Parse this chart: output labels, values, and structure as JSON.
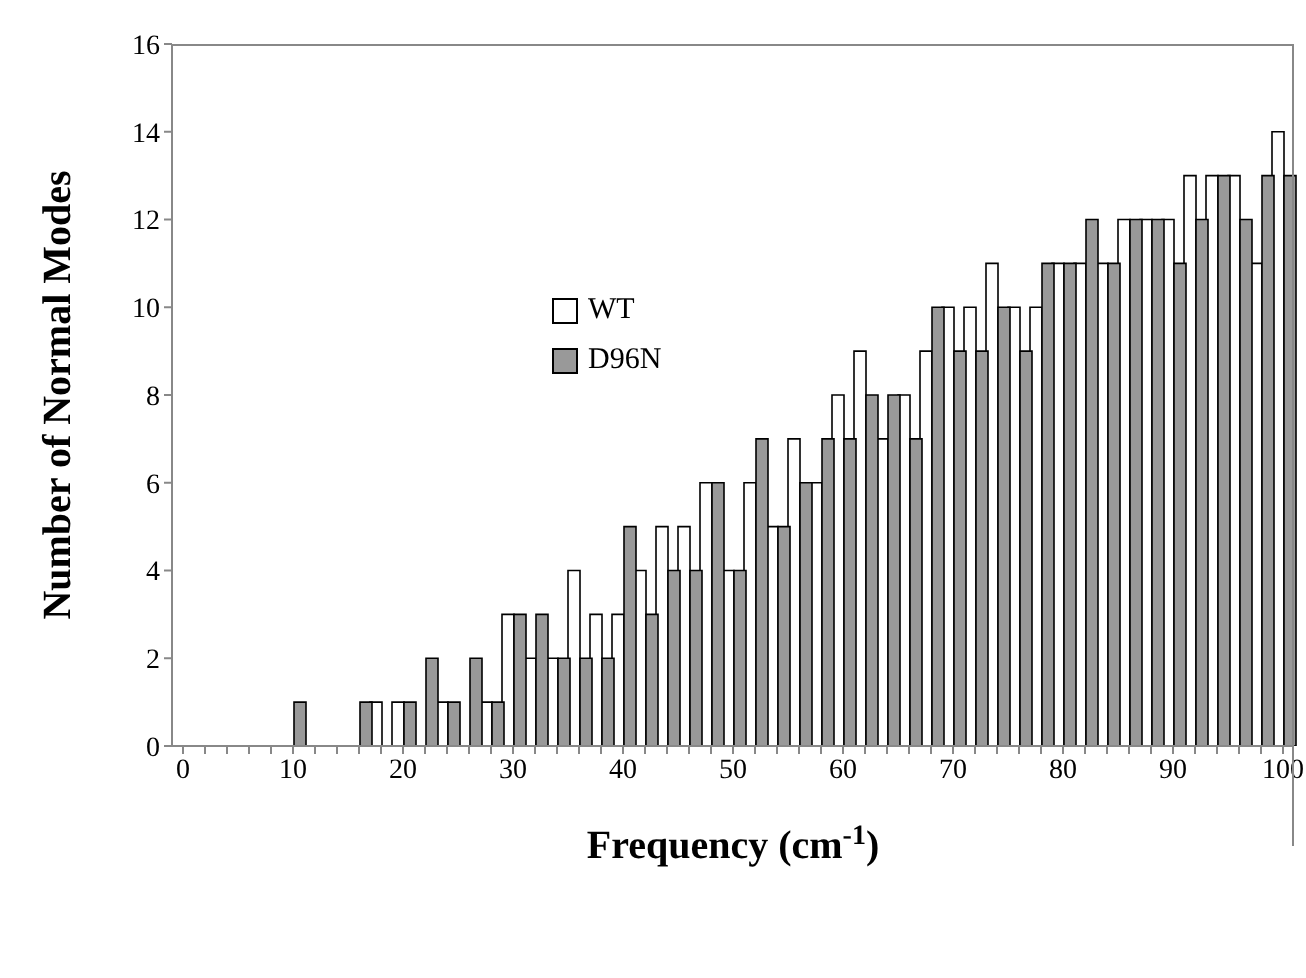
{
  "chart_data": {
    "type": "bar",
    "xlabel": "Frequency (cm$^{-1}$)",
    "ylabel": "Number of Normal Modes",
    "categories": [
      "0",
      null,
      null,
      null,
      null,
      "10",
      null,
      null,
      null,
      null,
      "20",
      null,
      null,
      null,
      null,
      "30",
      null,
      null,
      null,
      null,
      "40",
      null,
      null,
      null,
      null,
      "50",
      null,
      null,
      null,
      null,
      "60",
      null,
      null,
      null,
      null,
      "70",
      null,
      null,
      null,
      null,
      "80",
      null,
      null,
      null,
      null,
      "90",
      null,
      null,
      null,
      null,
      "100"
    ],
    "series": [
      {
        "name": "WT",
        "color": "#ffffff",
        "values": [
          0,
          0,
          0,
          0,
          0,
          0,
          0,
          0,
          0,
          1,
          1,
          0,
          1,
          0,
          1,
          3,
          2,
          2,
          4,
          3,
          3,
          4,
          5,
          5,
          6,
          4,
          6,
          5,
          7,
          6,
          8,
          9,
          7,
          8,
          9,
          10,
          10,
          11,
          10,
          10,
          11,
          11,
          11,
          12,
          12,
          12,
          13,
          13,
          13,
          11,
          14
        ]
      },
      {
        "name": "D96N",
        "color": "#999999",
        "values": [
          0,
          0,
          0,
          0,
          0,
          1,
          0,
          0,
          1,
          0,
          1,
          2,
          1,
          2,
          1,
          3,
          3,
          2,
          2,
          2,
          5,
          3,
          4,
          4,
          6,
          4,
          7,
          5,
          6,
          7,
          7,
          8,
          8,
          7,
          10,
          9,
          9,
          10,
          9,
          11,
          11,
          12,
          11,
          12,
          12,
          11,
          12,
          13,
          12,
          13,
          13
        ]
      }
    ],
    "ylim": [
      0,
      16
    ],
    "yticks": [
      0,
      2,
      4,
      6,
      8,
      10,
      12,
      14,
      16
    ],
    "legend": "top left"
  }
}
